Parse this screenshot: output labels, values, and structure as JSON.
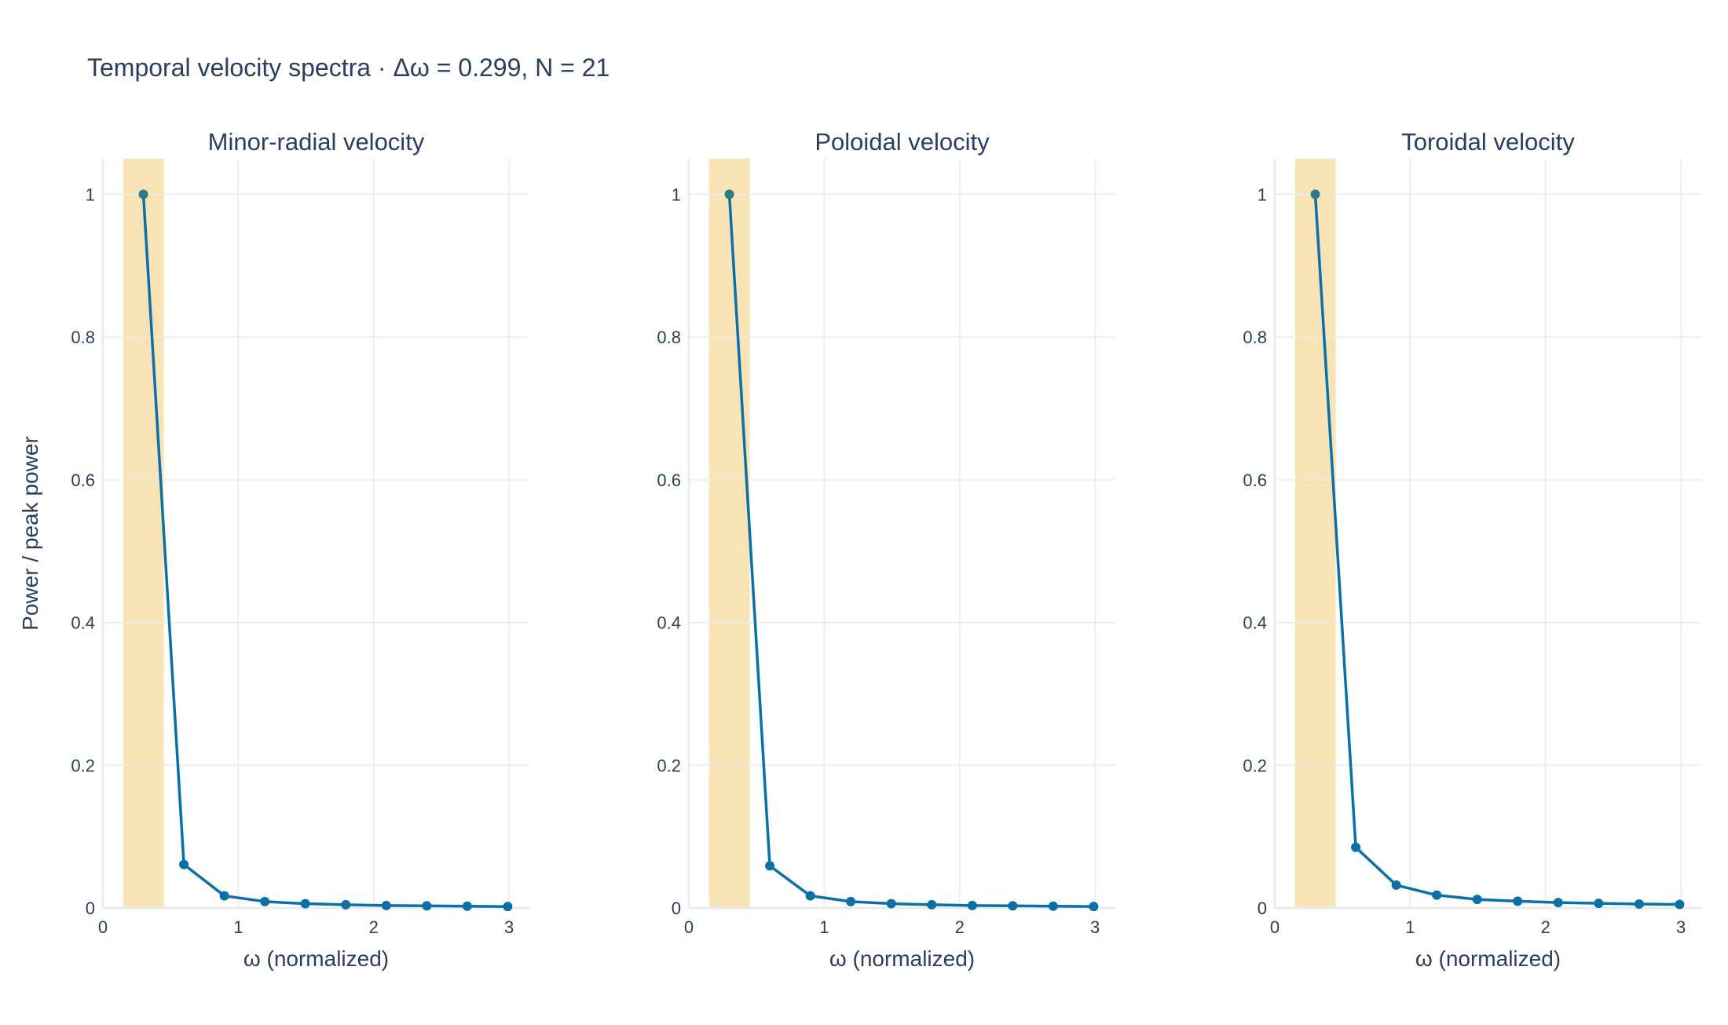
{
  "title": "Temporal velocity spectra · Δω = 0.299, N = 21",
  "colors": {
    "line": "#0b6fa8",
    "marker": "#0b6fa8",
    "peak_marker": "#2f7a86",
    "band": "#f8e3b5",
    "grid": "#e8ecf2",
    "text": "#2a3f5f"
  },
  "chart_data": [
    {
      "type": "line",
      "title": "Minor-radial velocity",
      "xlabel": "ω (normalized)",
      "ylabel": "Power / peak power",
      "xlim": [
        0,
        3.15
      ],
      "ylim": [
        0,
        1.05
      ],
      "xticks": [
        0,
        1,
        2,
        3
      ],
      "yticks": [
        0,
        0.2,
        0.4,
        0.6,
        0.8,
        1
      ],
      "highlight_band": [
        0.15,
        0.45
      ],
      "grid": true,
      "series": [
        {
          "x": [
            0.299,
            0.598,
            0.897,
            1.196,
            1.495,
            1.794,
            2.093,
            2.392,
            2.691,
            2.99
          ],
          "y": [
            1.0,
            0.061,
            0.017,
            0.009,
            0.006,
            0.0045,
            0.0035,
            0.003,
            0.0025,
            0.002
          ]
        }
      ]
    },
    {
      "type": "line",
      "title": "Poloidal velocity",
      "xlabel": "ω (normalized)",
      "ylabel": "",
      "xlim": [
        0,
        3.15
      ],
      "ylim": [
        0,
        1.05
      ],
      "xticks": [
        0,
        1,
        2,
        3
      ],
      "yticks": [
        0,
        0.2,
        0.4,
        0.6,
        0.8,
        1
      ],
      "highlight_band": [
        0.15,
        0.45
      ],
      "grid": true,
      "series": [
        {
          "x": [
            0.299,
            0.598,
            0.897,
            1.196,
            1.495,
            1.794,
            2.093,
            2.392,
            2.691,
            2.99
          ],
          "y": [
            1.0,
            0.059,
            0.017,
            0.009,
            0.006,
            0.0045,
            0.0035,
            0.003,
            0.0025,
            0.002
          ]
        }
      ]
    },
    {
      "type": "line",
      "title": "Toroidal velocity",
      "xlabel": "ω (normalized)",
      "ylabel": "",
      "xlim": [
        0,
        3.15
      ],
      "ylim": [
        0,
        1.05
      ],
      "xticks": [
        0,
        1,
        2,
        3
      ],
      "yticks": [
        0,
        0.2,
        0.4,
        0.6,
        0.8,
        1
      ],
      "highlight_band": [
        0.15,
        0.45
      ],
      "grid": true,
      "series": [
        {
          "x": [
            0.299,
            0.598,
            0.897,
            1.196,
            1.495,
            1.794,
            2.093,
            2.392,
            2.691,
            2.99
          ],
          "y": [
            1.0,
            0.085,
            0.032,
            0.018,
            0.012,
            0.0095,
            0.0075,
            0.0065,
            0.0055,
            0.005
          ]
        }
      ]
    }
  ]
}
